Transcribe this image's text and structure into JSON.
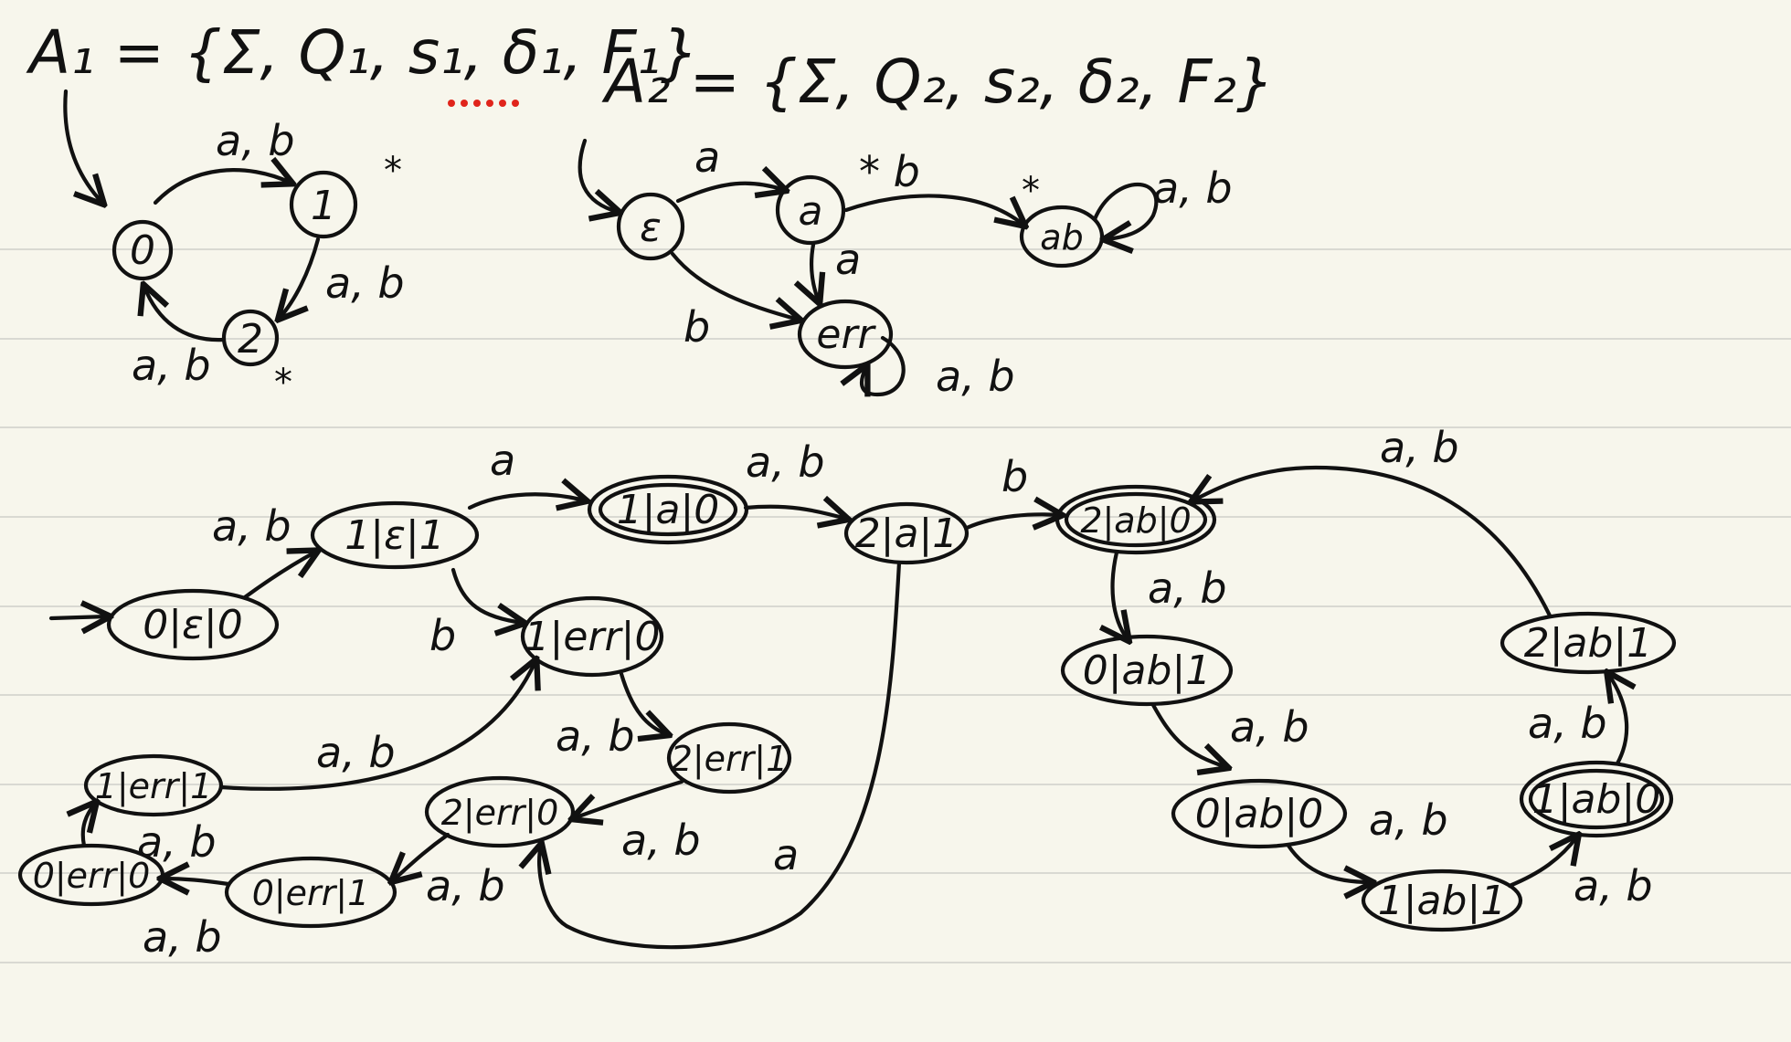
{
  "page": {
    "background": "#f7f6ec",
    "ink": "#111111",
    "accent_dots": "#e0241b"
  },
  "automaton_1": {
    "definition": "A₁ = {Σ, Q₁, s₁, δ₁, F₁}",
    "states": [
      "0",
      "1",
      "2"
    ],
    "final_marks": [
      "*",
      "*"
    ],
    "edge_labels": [
      "a, b",
      "a, b",
      "a, b"
    ]
  },
  "automaton_2": {
    "definition": "A₂ = {Σ, Q₂, s₂, δ₂, F₂}",
    "states": [
      "ε",
      "a",
      "ab",
      "err"
    ],
    "final_marks": [
      "*"
    ],
    "edge_labels": [
      "a",
      "* b",
      "a",
      "b",
      "a, b",
      "a, b"
    ]
  },
  "product": {
    "states": [
      "0|ε|0",
      "1|ε|1",
      "1|a|0",
      "2|a|1",
      "2|ab|0",
      "1|err|0",
      "2|err|1",
      "2|err|0",
      "0|err|1",
      "0|err|0",
      "1|err|1",
      "0|ab|1",
      "0|ab|0",
      "1|ab|1",
      "1|ab|0",
      "2|ab|1"
    ],
    "edge_labels": [
      "a, b",
      "a",
      "b",
      "a, b",
      "b",
      "a, b",
      "a, b",
      "a, b",
      "a, b",
      "a, b",
      "a, b",
      "a",
      "a, b",
      "a, b",
      "a, b",
      "a, b",
      "a, b",
      "a, b"
    ]
  }
}
